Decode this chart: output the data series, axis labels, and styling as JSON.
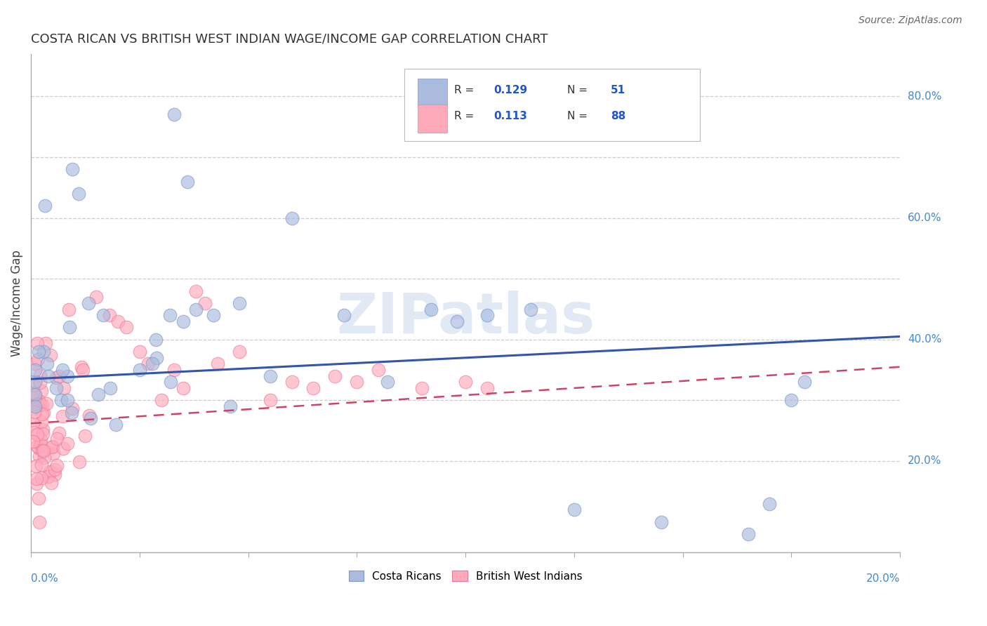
{
  "title": "COSTA RICAN VS BRITISH WEST INDIAN WAGE/INCOME GAP CORRELATION CHART",
  "source": "Source: ZipAtlas.com",
  "ylabel": "Wage/Income Gap",
  "xlim": [
    0.0,
    0.2
  ],
  "ylim": [
    0.05,
    0.87
  ],
  "watermark": "ZIPatlas",
  "blue_fill": "#AABBDD",
  "blue_edge": "#7799CC",
  "pink_fill": "#FFAABB",
  "pink_edge": "#EE7799",
  "line_blue_color": "#3355AA",
  "line_pink_color": "#CC4466",
  "y_grid": [
    0.2,
    0.3,
    0.4,
    0.5,
    0.6,
    0.7,
    0.8
  ],
  "right_ytick_vals": [
    0.2,
    0.4,
    0.6,
    0.8
  ],
  "right_ytick_labels": [
    "20.0%",
    "40.0%",
    "60.0%",
    "80.0%"
  ],
  "blue_line_x0": 0.0,
  "blue_line_y0": 0.335,
  "blue_line_x1": 0.2,
  "blue_line_y1": 0.405,
  "pink_line_x0": 0.0,
  "pink_line_y0": 0.262,
  "pink_line_x1": 0.2,
  "pink_line_y1": 0.355,
  "legend_r1": "0.129",
  "legend_n1": "51",
  "legend_r2": "0.113",
  "legend_n2": "88"
}
